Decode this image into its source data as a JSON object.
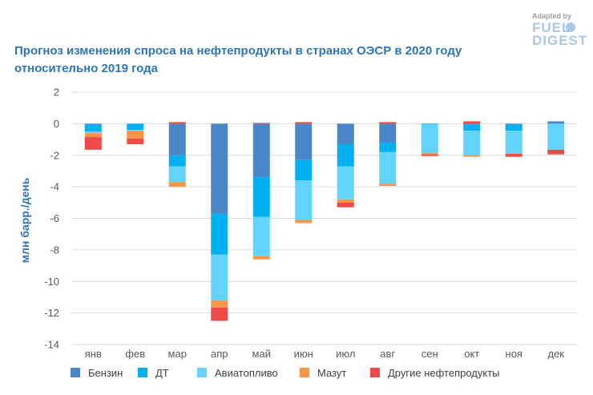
{
  "chart_data": {
    "type": "bar",
    "stacked": true,
    "title_line1": "Прогноз изменения спроса на нефтепродукты в странах ОЭСР в 2020 году",
    "title_line2": "относительно 2019 года",
    "ylabel": "млн барр./день",
    "xlabel": "",
    "ylim": [
      -14,
      2
    ],
    "yticks": [
      2,
      0,
      -2,
      -4,
      -6,
      -8,
      -10,
      -12,
      -14
    ],
    "grid": true,
    "legend_position": "bottom",
    "categories": [
      "янв",
      "фев",
      "мар",
      "апр",
      "май",
      "июн",
      "июл",
      "авг",
      "сен",
      "окт",
      "ноя",
      "дек"
    ],
    "series": [
      {
        "name": "Бензин",
        "color": "#4a86c8",
        "values": [
          -0.05,
          0.0,
          -2.0,
          -5.7,
          -3.4,
          -2.3,
          -1.3,
          -1.2,
          0.0,
          -0.05,
          -0.05,
          0.15
        ]
      },
      {
        "name": "ДТ",
        "color": "#00b0f0",
        "values": [
          -0.45,
          -0.4,
          -0.7,
          -2.6,
          -2.5,
          -1.3,
          -1.4,
          -0.6,
          -0.05,
          -0.4,
          -0.4,
          0.0
        ]
      },
      {
        "name": "Авиатопливо",
        "color": "#62d3fa",
        "values": [
          -0.1,
          -0.05,
          -1.0,
          -2.9,
          -2.5,
          -2.5,
          -2.1,
          -2.0,
          -1.8,
          -1.55,
          -1.45,
          -1.65
        ]
      },
      {
        "name": "Мазут",
        "color": "#f79646",
        "values": [
          -0.25,
          -0.5,
          -0.3,
          -0.45,
          -0.2,
          -0.2,
          -0.2,
          -0.15,
          -0.1,
          -0.1,
          -0.0,
          -0.0
        ]
      },
      {
        "name": "Другие нефтепродукты",
        "color": "#ef4a4a",
        "values": [
          -0.8,
          -0.35,
          0.1,
          -0.85,
          0.05,
          0.1,
          -0.3,
          0.1,
          -0.1,
          0.15,
          -0.2,
          -0.3
        ]
      }
    ]
  },
  "brand": {
    "line1": "Adapted by",
    "line2": "FUEL",
    "line3": "DIGEST"
  }
}
